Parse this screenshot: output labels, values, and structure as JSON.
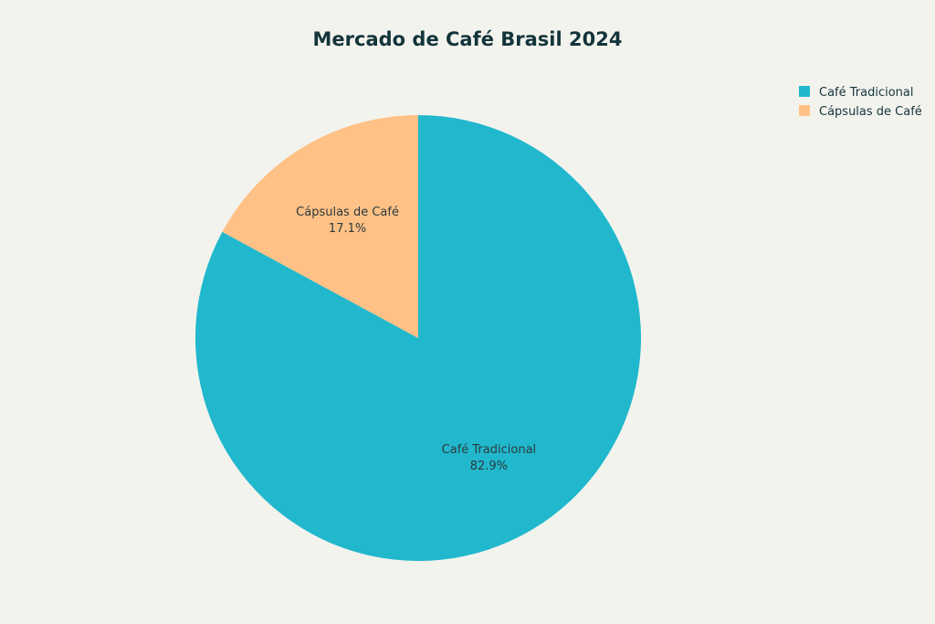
{
  "chart_data": {
    "type": "pie",
    "title": "Mercado de Café Brasil 2024",
    "labels": [
      "Café Tradicional",
      "Cápsulas de Café"
    ],
    "values": [
      82.9,
      17.1
    ],
    "value_labels": [
      "82.9%",
      "17.1%"
    ],
    "colors": [
      "#21b8cd",
      "#ffc185"
    ],
    "start": "12 o'clock",
    "direction": "clockwise",
    "legend": "top-right"
  }
}
